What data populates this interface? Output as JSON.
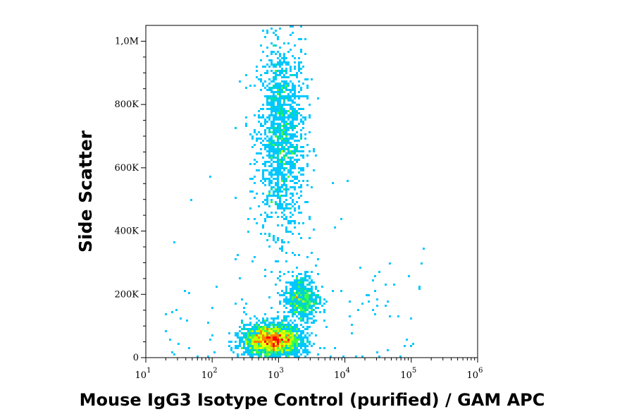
{
  "chart_data": {
    "type": "scatter",
    "title": "",
    "xlabel": "Mouse IgG3 Isotype Control (purified) / GAM APC",
    "ylabel": "Side Scatter",
    "x_scale": "log",
    "xlim": [
      10,
      1000000
    ],
    "ylim": [
      0,
      1050000
    ],
    "x_ticks": [
      {
        "value": 10,
        "base": "10",
        "exp": "1"
      },
      {
        "value": 100,
        "base": "10",
        "exp": "2"
      },
      {
        "value": 1000,
        "base": "10",
        "exp": "3"
      },
      {
        "value": 10000,
        "base": "10",
        "exp": "4"
      },
      {
        "value": 100000,
        "base": "10",
        "exp": "5"
      },
      {
        "value": 1000000,
        "base": "10",
        "exp": "6"
      }
    ],
    "y_ticks": [
      {
        "value": 0,
        "label": "0"
      },
      {
        "value": 200000,
        "label": "200K"
      },
      {
        "value": 400000,
        "label": "400K"
      },
      {
        "value": 600000,
        "label": "600K"
      },
      {
        "value": 800000,
        "label": "800K"
      },
      {
        "value": 1000000,
        "label": "1,0M"
      }
    ],
    "grid": false,
    "legend": "none",
    "density_colors": [
      "#0000ff",
      "#0080ff",
      "#00c8ff",
      "#00e0a0",
      "#40ff40",
      "#c0ff00",
      "#ffff00",
      "#ff8000",
      "#ff0000"
    ],
    "populations": [
      {
        "name_shown": false,
        "x_center": 1100,
        "x_log_sd": 0.18,
        "y_center": 700000,
        "y_sd": 150000,
        "relative_density": 1.0
      },
      {
        "name_shown": false,
        "x_center": 2200,
        "x_log_sd": 0.13,
        "y_center": 185000,
        "y_sd": 40000,
        "relative_density": 0.4
      },
      {
        "name_shown": false,
        "x_center": 800,
        "x_log_sd": 0.22,
        "y_center": 55000,
        "y_sd": 25000,
        "relative_density": 1.6
      }
    ]
  }
}
